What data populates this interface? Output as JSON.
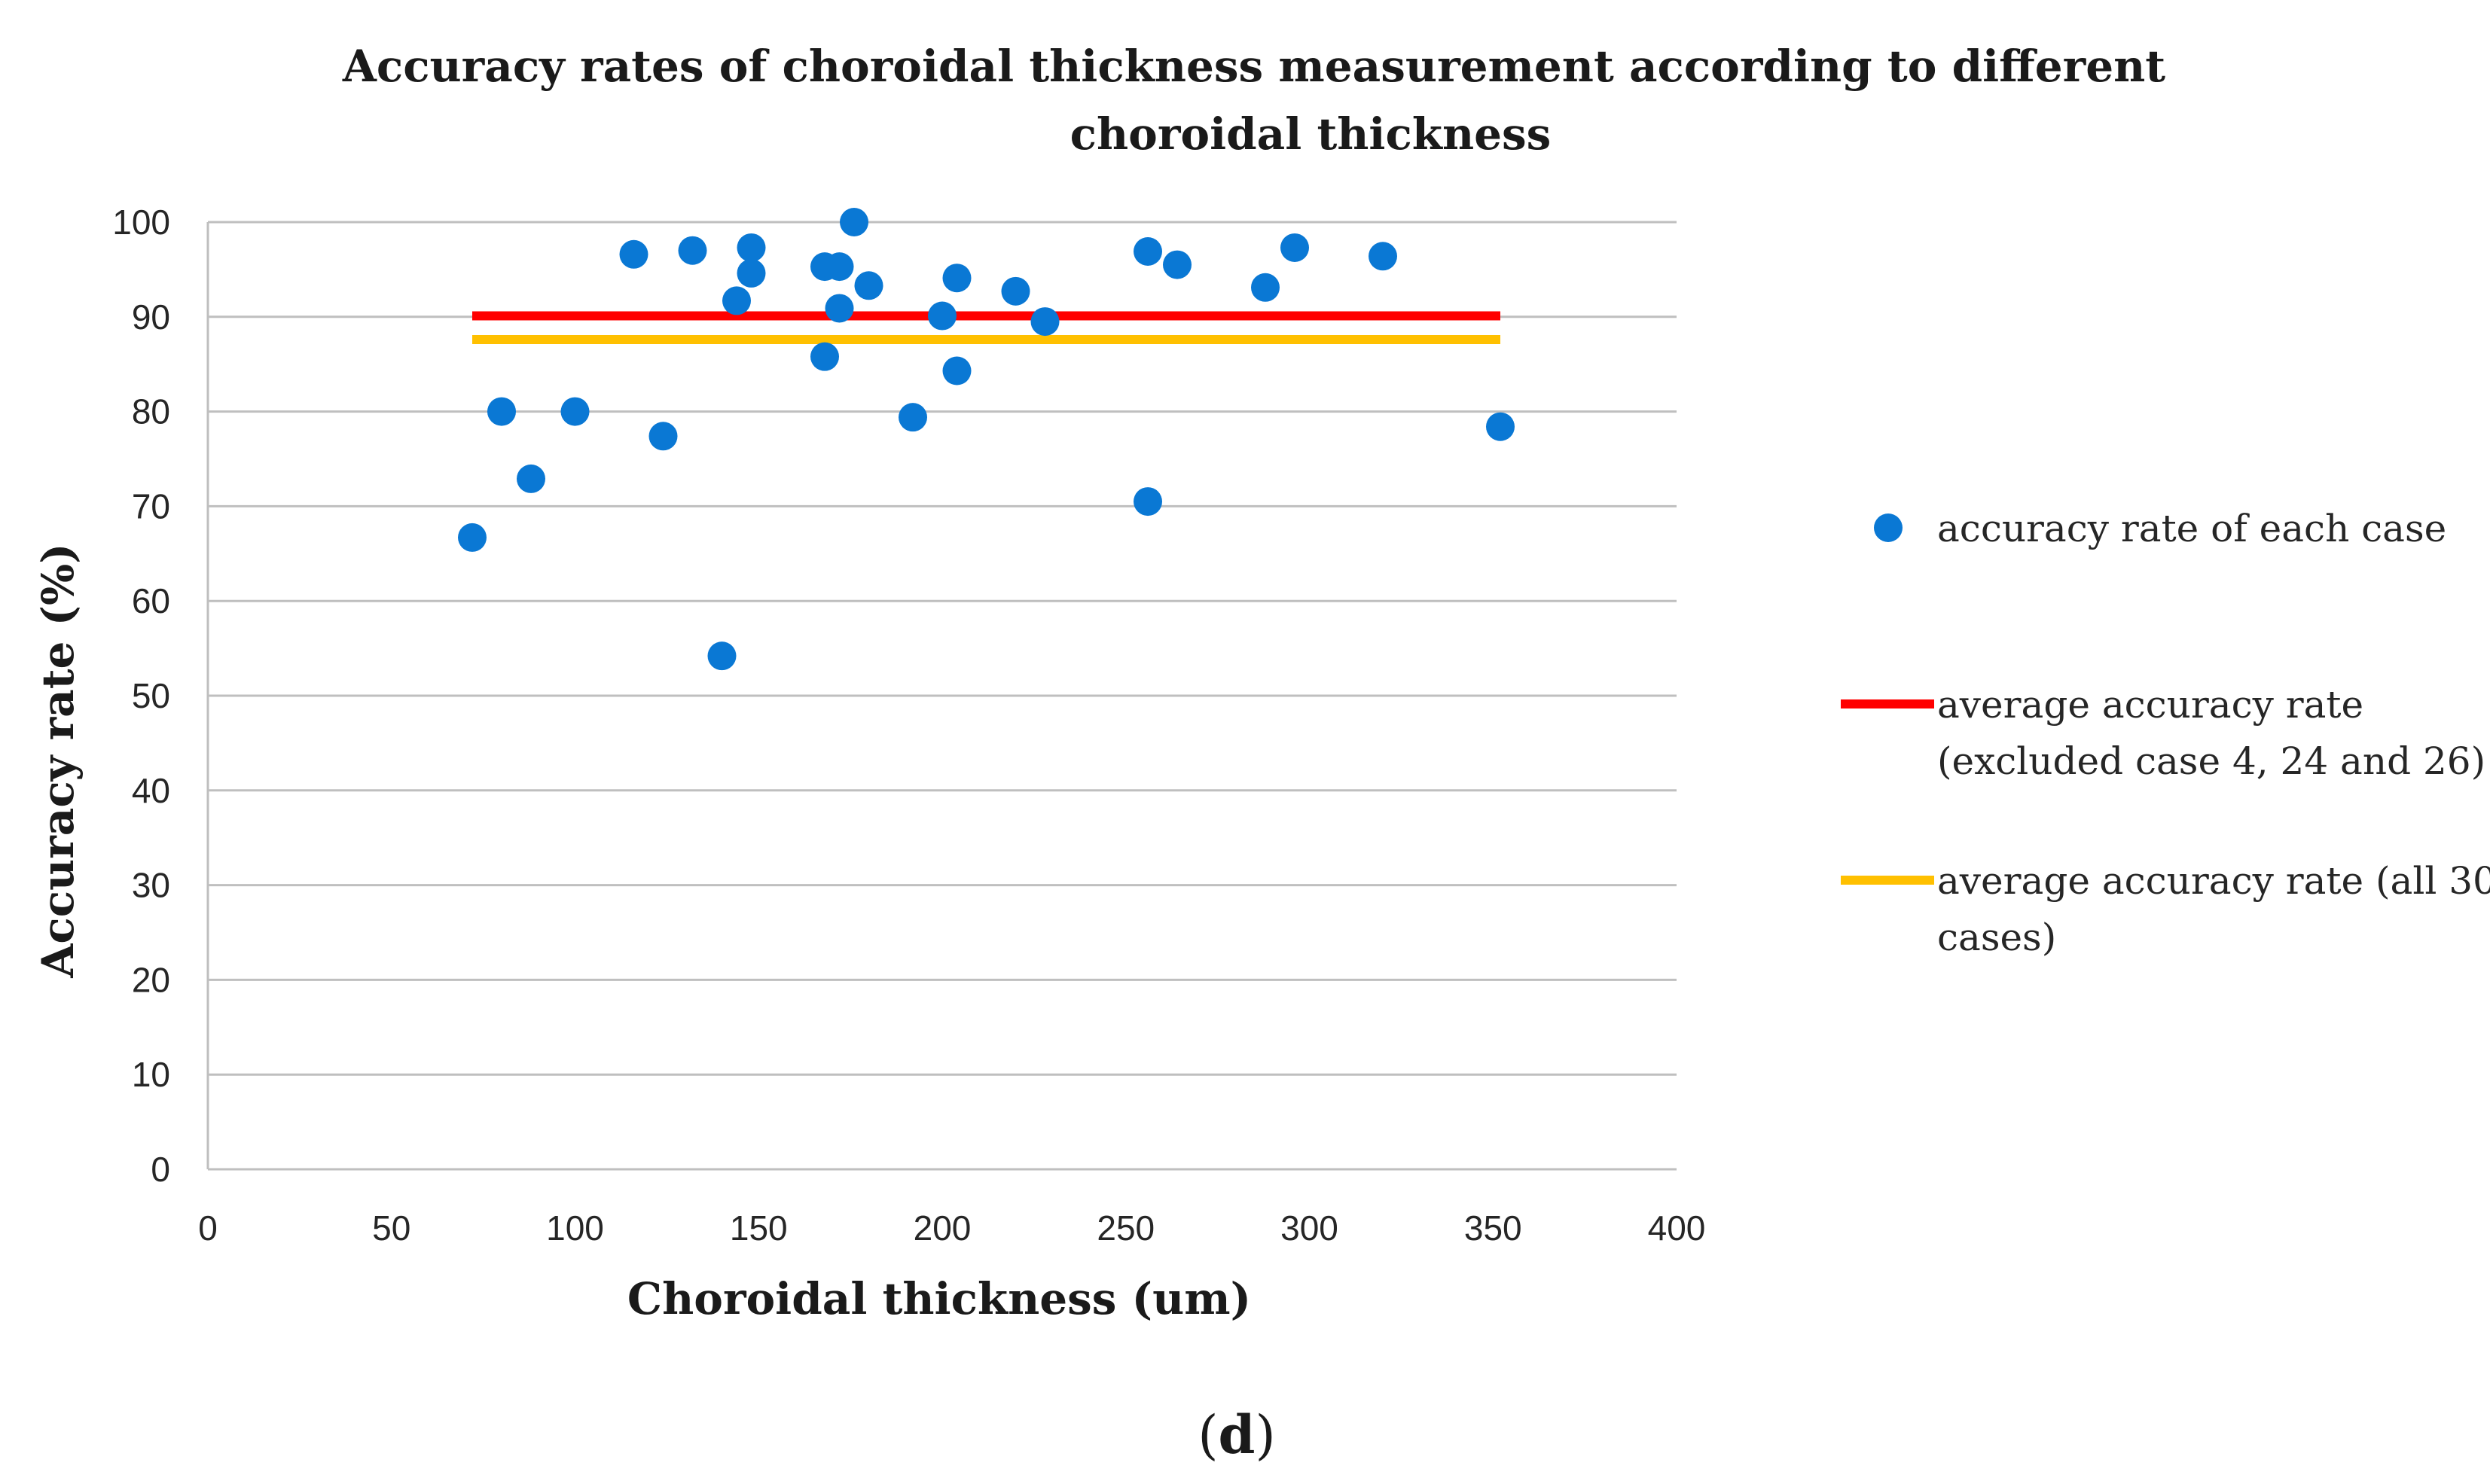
{
  "chart_data": {
    "type": "scatter",
    "title_lines": [
      "Accuracy rates of choroidal thickness measurement according to different",
      "choroidal thickness"
    ],
    "xlabel": "Choroidal thickness (um)",
    "ylabel": "Accuracy rate (%)",
    "xlim": [
      0,
      400
    ],
    "ylim": [
      0,
      100
    ],
    "xticks": [
      "0",
      "50",
      "100",
      "150",
      "200",
      "250",
      "300",
      "350",
      "400"
    ],
    "yticks": [
      "0",
      "10",
      "20",
      "30",
      "40",
      "50",
      "60",
      "70",
      "80",
      "90",
      "100"
    ],
    "grid": "horizontal",
    "colors": {
      "points": "#0a78d4",
      "avg_excluded": "#ff0000",
      "avg_all": "#ffc000"
    },
    "series": [
      {
        "name": "accuracy rate of each case",
        "kind": "scatter",
        "points": [
          [
            72,
            66.7
          ],
          [
            80,
            80
          ],
          [
            88,
            72.9
          ],
          [
            100,
            80
          ],
          [
            116,
            96.6
          ],
          [
            124,
            77.4
          ],
          [
            132,
            97
          ],
          [
            140,
            54.2
          ],
          [
            144,
            91.7
          ],
          [
            148,
            97.3
          ],
          [
            148,
            94.6
          ],
          [
            168,
            95.3
          ],
          [
            168,
            85.8
          ],
          [
            172,
            95.3
          ],
          [
            172,
            90.9
          ],
          [
            176,
            100
          ],
          [
            180,
            93.3
          ],
          [
            192,
            79.4
          ],
          [
            200,
            90.1
          ],
          [
            204,
            94.1
          ],
          [
            204,
            84.3
          ],
          [
            220,
            92.7
          ],
          [
            228,
            89.5
          ],
          [
            256,
            96.9
          ],
          [
            256,
            70.5
          ],
          [
            264,
            95.5
          ],
          [
            288,
            93.1
          ],
          [
            296,
            97.3
          ],
          [
            320,
            96.4
          ],
          [
            352,
            78.4
          ]
        ]
      },
      {
        "name": "average accuracy rate (excluded case 4, 24 and 26)",
        "legend_lines": [
          "average accuracy rate",
          "(excluded case 4, 24 and 26)"
        ],
        "kind": "line",
        "x": [
          72,
          352
        ],
        "y": [
          90.1,
          90.1
        ]
      },
      {
        "name": "average accuracy rate (all 30 cases)",
        "legend_lines": [
          "average accuracy rate (all 30",
          "cases)"
        ],
        "kind": "line",
        "x": [
          72,
          352
        ],
        "y": [
          87.6,
          87.6
        ]
      }
    ],
    "legend_position": "right"
  },
  "panel_label": {
    "open": "(",
    "letter": "d",
    "close": ")"
  }
}
